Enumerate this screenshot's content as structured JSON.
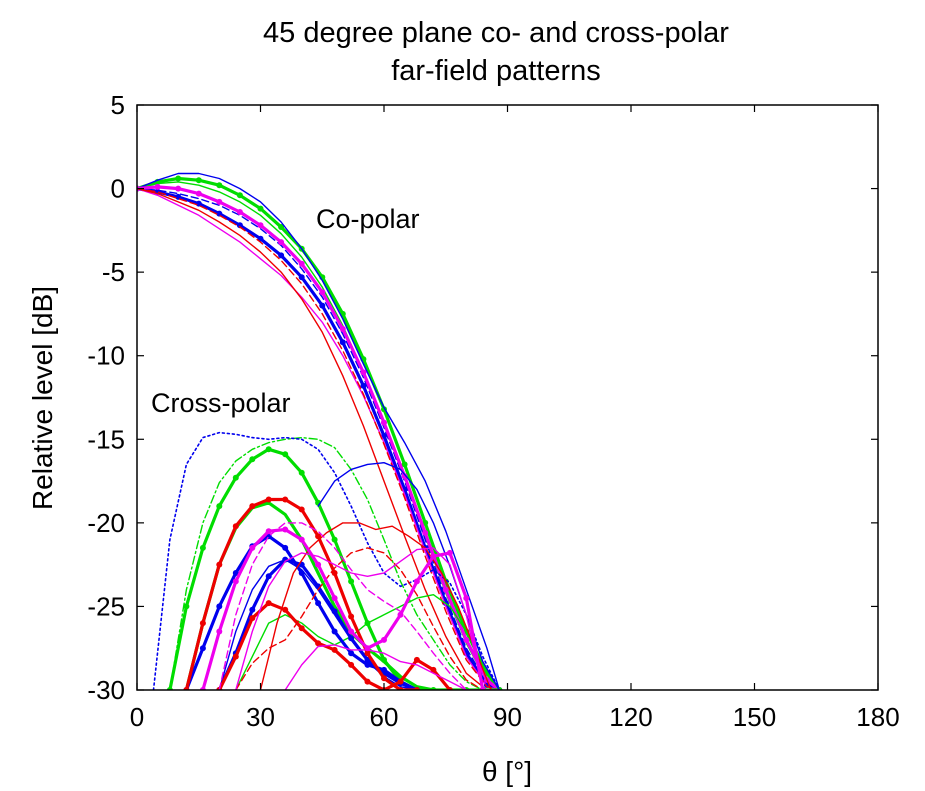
{
  "chart_data": {
    "type": "line",
    "title": [
      "45 degree plane co- and cross-polar",
      "far-field patterns"
    ],
    "xlabel": "θ [°]",
    "ylabel": "Relative level [dB]",
    "xlim": [
      0,
      180
    ],
    "ylim": [
      -30,
      5
    ],
    "xticks": [
      0,
      30,
      60,
      90,
      120,
      150,
      180
    ],
    "yticks": [
      5,
      0,
      -5,
      -10,
      -15,
      -20,
      -25,
      -30
    ],
    "grid": false,
    "annotations": [
      {
        "text": "Co-polar",
        "x": 64,
        "y": -2
      },
      {
        "text": "Cross-polar",
        "x": 5,
        "y": -13
      }
    ],
    "series": [
      {
        "group": "co-polar",
        "color": "#00dd00",
        "style": "dotted-bold",
        "x": [
          0,
          5,
          10,
          15,
          20,
          25,
          30,
          35,
          40,
          45,
          50,
          55,
          60,
          65,
          70,
          75,
          80,
          85,
          88
        ],
        "y": [
          0,
          0.4,
          0.6,
          0.5,
          0.2,
          -0.4,
          -1.2,
          -2.3,
          -3.6,
          -5.3,
          -7.5,
          -10.2,
          -13.2,
          -16.5,
          -20,
          -23.5,
          -26.5,
          -29,
          -30
        ]
      },
      {
        "group": "co-polar",
        "color": "#00dd00",
        "style": "solid",
        "x": [
          0,
          5,
          10,
          15,
          20,
          25,
          30,
          35,
          40,
          45,
          50,
          55,
          60,
          65,
          70,
          75,
          80,
          85,
          88
        ],
        "y": [
          0,
          0.3,
          0.4,
          0.2,
          -0.2,
          -0.8,
          -1.6,
          -2.7,
          -4.1,
          -5.9,
          -8.2,
          -11,
          -14,
          -17.3,
          -20.8,
          -24.2,
          -27.2,
          -29.5,
          -30
        ]
      },
      {
        "group": "co-polar",
        "color": "#0000ee",
        "style": "dotted-bold",
        "x": [
          0,
          5,
          10,
          15,
          20,
          25,
          30,
          35,
          40,
          45,
          50,
          55,
          60,
          65,
          70,
          75,
          80,
          85,
          88
        ],
        "y": [
          0,
          -0.2,
          -0.5,
          -0.9,
          -1.5,
          -2.2,
          -3,
          -4,
          -5.3,
          -7,
          -9.2,
          -11.8,
          -14.8,
          -18,
          -21.5,
          -24.8,
          -27.8,
          -29.7,
          -30
        ]
      },
      {
        "group": "co-polar",
        "color": "#0000ee",
        "style": "solid",
        "x": [
          0,
          5,
          10,
          15,
          20,
          25,
          30,
          35,
          40,
          45,
          50,
          55,
          60,
          65,
          70,
          75,
          80,
          85,
          88
        ],
        "y": [
          0,
          0.5,
          0.9,
          0.9,
          0.6,
          0,
          -0.8,
          -2,
          -3.6,
          -5.5,
          -7.8,
          -10.5,
          -13.1,
          -15.2,
          -17.5,
          -20.5,
          -24,
          -27.5,
          -30
        ]
      },
      {
        "group": "co-polar",
        "color": "#0000ee",
        "style": "dashed",
        "x": [
          0,
          5,
          10,
          15,
          20,
          25,
          30,
          35,
          40,
          45,
          50,
          55,
          60,
          65,
          70,
          75,
          80,
          85,
          88
        ],
        "y": [
          0,
          -0.1,
          -0.3,
          -0.6,
          -1,
          -1.6,
          -2.4,
          -3.4,
          -4.8,
          -6.5,
          -8.7,
          -11.3,
          -14.3,
          -17.5,
          -21,
          -24.5,
          -27.5,
          -29.6,
          -30
        ]
      },
      {
        "group": "co-polar",
        "color": "#ee00ee",
        "style": "dotted-bold",
        "x": [
          0,
          5,
          10,
          15,
          20,
          25,
          30,
          35,
          40,
          45,
          50,
          55,
          60,
          65,
          70,
          75,
          80,
          85,
          88
        ],
        "y": [
          0,
          0.1,
          0,
          -0.3,
          -0.8,
          -1.4,
          -2.2,
          -3.2,
          -4.5,
          -6.2,
          -8.4,
          -11,
          -14,
          -17.2,
          -20.6,
          -24,
          -27,
          -29.4,
          -30
        ]
      },
      {
        "group": "co-polar",
        "color": "#ee00ee",
        "style": "solid",
        "x": [
          0,
          5,
          10,
          15,
          20,
          25,
          30,
          35,
          40,
          45,
          50,
          55,
          60,
          65,
          70,
          75,
          80,
          85,
          88
        ],
        "y": [
          0,
          -0.4,
          -1,
          -1.6,
          -2.4,
          -3.2,
          -4.2,
          -5.2,
          -6.5,
          -8,
          -10,
          -12.4,
          -15.2,
          -18.3,
          -21.7,
          -25,
          -28,
          -29.8,
          -30
        ]
      },
      {
        "group": "co-polar",
        "color": "#ee0000",
        "style": "solid",
        "x": [
          0,
          5,
          10,
          15,
          20,
          25,
          30,
          35,
          40,
          45,
          50,
          55,
          60,
          65,
          70,
          75,
          80,
          85,
          88
        ],
        "y": [
          0,
          -0.3,
          -0.8,
          -1.3,
          -2,
          -2.8,
          -3.8,
          -5,
          -6.6,
          -8.6,
          -11.2,
          -14.2,
          -17.5,
          -20.8,
          -24,
          -26.8,
          -29,
          -30,
          -30
        ]
      },
      {
        "group": "co-polar",
        "color": "#ee0000",
        "style": "dashed",
        "x": [
          0,
          5,
          10,
          15,
          20,
          25,
          30,
          35,
          40,
          45,
          50,
          55,
          60,
          65,
          70,
          75,
          80,
          85,
          88
        ],
        "y": [
          0,
          -0.2,
          -0.6,
          -1,
          -1.6,
          -2.3,
          -3.2,
          -4.3,
          -5.7,
          -7.5,
          -9.7,
          -12.3,
          -15.3,
          -18.5,
          -22,
          -25.3,
          -28.2,
          -29.8,
          -30
        ]
      },
      {
        "group": "cross-polar",
        "color": "#00dd00",
        "style": "dotted-bold",
        "x": [
          8,
          12,
          16,
          20,
          24,
          28,
          32,
          36,
          40,
          44,
          48,
          52,
          56,
          60,
          64,
          68,
          72,
          76,
          80,
          84,
          88
        ],
        "y": [
          -30,
          -25,
          -21.5,
          -19,
          -17.3,
          -16.2,
          -15.6,
          -15.9,
          -17,
          -18.8,
          -21,
          -23.5,
          -26,
          -28.2,
          -29.5,
          -30,
          -30,
          -30,
          -30,
          -30,
          -30
        ]
      },
      {
        "group": "cross-polar",
        "color": "#00dd00",
        "style": "solid-bold",
        "x": [
          12,
          16,
          20,
          24,
          28,
          32,
          36,
          40,
          44,
          48,
          52,
          56,
          60,
          64,
          68,
          72
        ],
        "y": [
          -30,
          -26,
          -22.5,
          -20.3,
          -19.1,
          -18.8,
          -19.5,
          -21,
          -23,
          -25,
          -26.6,
          -27.5,
          -28.3,
          -29.2,
          -29.8,
          -30
        ]
      },
      {
        "group": "cross-polar",
        "color": "#00dd00",
        "style": "dash-dot",
        "x": [
          8,
          12,
          16,
          20,
          24,
          28,
          32,
          36,
          40,
          44,
          48,
          52,
          56,
          60,
          64,
          68,
          72,
          76,
          80,
          84,
          88
        ],
        "y": [
          -30,
          -24,
          -20,
          -17.6,
          -16.3,
          -15.6,
          -15.2,
          -15,
          -14.9,
          -15,
          -15.5,
          -16.8,
          -18.6,
          -21,
          -23.5,
          -25.5,
          -27,
          -28.5,
          -29.5,
          -30,
          -30
        ]
      },
      {
        "group": "cross-polar",
        "color": "#00dd00",
        "style": "solid",
        "x": [
          24,
          28,
          32,
          36,
          40,
          44,
          48,
          52,
          56,
          60,
          64,
          68,
          72,
          76,
          80,
          84,
          88
        ],
        "y": [
          -30,
          -28,
          -26,
          -25.5,
          -26,
          -26.8,
          -27.3,
          -26.8,
          -26,
          -25.5,
          -25,
          -24.5,
          -24.3,
          -25,
          -26.5,
          -28.5,
          -30
        ]
      },
      {
        "group": "cross-polar",
        "color": "#0000ee",
        "style": "dotted-bold",
        "x": [
          12,
          16,
          20,
          24,
          28,
          32,
          36,
          40,
          44,
          48,
          52,
          56,
          60,
          64,
          68
        ],
        "y": [
          -30,
          -27.5,
          -25,
          -23,
          -21.4,
          -20.8,
          -21.5,
          -23,
          -24.8,
          -26.5,
          -27.8,
          -28.5,
          -28.8,
          -29.5,
          -30
        ]
      },
      {
        "group": "cross-polar",
        "color": "#0000ee",
        "style": "dotted-bold",
        "x": [
          20,
          24,
          28,
          32,
          36,
          40,
          44,
          48,
          52,
          56,
          60,
          64,
          68
        ],
        "y": [
          -30,
          -27.8,
          -25.2,
          -23.2,
          -22.2,
          -22.5,
          -23.8,
          -25.3,
          -26.9,
          -28.2,
          -29,
          -29.6,
          -30
        ]
      },
      {
        "group": "cross-polar",
        "color": "#0000ee",
        "style": "dotted",
        "x": [
          4,
          8,
          12,
          16,
          20,
          24,
          28,
          32,
          36,
          40,
          44,
          48,
          52,
          56,
          60,
          64,
          68,
          72,
          76,
          80,
          84,
          88
        ],
        "y": [
          -30,
          -21,
          -16.5,
          -14.9,
          -14.6,
          -14.7,
          -14.9,
          -15,
          -14.9,
          -15,
          -15.6,
          -17,
          -19,
          -21.2,
          -23,
          -23.8,
          -23.4,
          -22.8,
          -23.6,
          -25.5,
          -28,
          -30
        ]
      },
      {
        "group": "cross-polar",
        "color": "#0000ee",
        "style": "solid",
        "x": [
          44,
          48,
          52,
          56,
          60,
          64,
          68,
          72,
          76,
          80,
          84,
          88
        ],
        "y": [
          -19,
          -17.5,
          -16.8,
          -16.5,
          -16.4,
          -16.8,
          -18,
          -20,
          -22.6,
          -25.5,
          -28.3,
          -30
        ]
      },
      {
        "group": "cross-polar",
        "color": "#0000ee",
        "style": "solid",
        "x": [
          20,
          24,
          28,
          32,
          36,
          40,
          44,
          48,
          52,
          56,
          60,
          64,
          68
        ],
        "y": [
          -30,
          -26.5,
          -24,
          -22.6,
          -22.2,
          -22.8,
          -24,
          -25.5,
          -27,
          -28.3,
          -29.2,
          -29.8,
          -30
        ]
      },
      {
        "group": "cross-polar",
        "color": "#ee0000",
        "style": "dotted-bold",
        "x": [
          12,
          16,
          20,
          24,
          28,
          32,
          36,
          40,
          44,
          48,
          52,
          56,
          60,
          64,
          68
        ],
        "y": [
          -30,
          -26,
          -22.5,
          -20.2,
          -19,
          -18.6,
          -18.6,
          -19.2,
          -20.8,
          -23,
          -25.6,
          -27.8,
          -29.3,
          -30,
          -30
        ]
      },
      {
        "group": "cross-polar",
        "color": "#ee0000",
        "style": "dotted-bold",
        "x": [
          20,
          24,
          28,
          32,
          36,
          40,
          44,
          48,
          52,
          56,
          60,
          64,
          68,
          72,
          76
        ],
        "y": [
          -30,
          -28,
          -25.7,
          -24.8,
          -25.2,
          -26.3,
          -27.2,
          -27.6,
          -28.5,
          -29.5,
          -30,
          -29.5,
          -28.2,
          -28.8,
          -30
        ]
      },
      {
        "group": "cross-polar",
        "color": "#ee0000",
        "style": "solid",
        "x": [
          30,
          34,
          38,
          42,
          46,
          50,
          54,
          58,
          62,
          66,
          70,
          74,
          78,
          82,
          86
        ],
        "y": [
          -30,
          -26,
          -23,
          -21.5,
          -20.6,
          -20,
          -20,
          -20.4,
          -20.2,
          -20.8,
          -21.5,
          -23,
          -25,
          -27.5,
          -30
        ]
      },
      {
        "group": "cross-polar",
        "color": "#ee0000",
        "style": "dashed",
        "x": [
          24,
          28,
          32,
          36,
          40,
          44,
          48,
          52,
          56,
          60,
          64,
          68,
          72,
          76,
          80,
          84
        ],
        "y": [
          -30,
          -28.4,
          -27.5,
          -27,
          -25.6,
          -24,
          -22.7,
          -21.8,
          -21.5,
          -21.8,
          -22.8,
          -24.3,
          -26.2,
          -28,
          -29.4,
          -30
        ]
      },
      {
        "group": "cross-polar",
        "color": "#ee00ee",
        "style": "dotted-bold",
        "x": [
          16,
          20,
          24,
          28,
          32,
          36,
          40,
          44,
          48,
          52,
          56,
          60,
          64,
          68,
          72,
          76,
          80,
          84
        ],
        "y": [
          -30,
          -26.5,
          -23.5,
          -21.5,
          -20.5,
          -20.4,
          -21,
          -22.5,
          -24.5,
          -26.5,
          -27.5,
          -27,
          -25.5,
          -23.5,
          -22,
          -21.8,
          -24.5,
          -30
        ]
      },
      {
        "group": "cross-polar",
        "color": "#ee00ee",
        "style": "solid",
        "x": [
          24,
          28,
          32,
          36,
          40,
          44,
          48,
          52,
          56,
          60,
          64,
          68,
          72,
          76,
          80,
          84
        ],
        "y": [
          -30,
          -26.5,
          -23.8,
          -22.3,
          -21.8,
          -22,
          -22.5,
          -23,
          -23.2,
          -23,
          -22.3,
          -21.6,
          -21.5,
          -22.5,
          -25.5,
          -30
        ]
      },
      {
        "group": "cross-polar",
        "color": "#ee00ee",
        "style": "dashed",
        "x": [
          20,
          24,
          28,
          32,
          36,
          40,
          44,
          48,
          52,
          56,
          60,
          64,
          68,
          72,
          76,
          80
        ],
        "y": [
          -30,
          -25.5,
          -22.5,
          -20.8,
          -20,
          -20,
          -20.5,
          -21.5,
          -22.8,
          -24,
          -24.7,
          -25.3,
          -26.5,
          -27.8,
          -29,
          -30
        ]
      },
      {
        "group": "cross-polar",
        "color": "#ee00ee",
        "style": "solid",
        "x": [
          36,
          40,
          44,
          48,
          52,
          56,
          60,
          64,
          68,
          72,
          76,
          80,
          84,
          88
        ],
        "y": [
          -30,
          -28.5,
          -27.4,
          -27.3,
          -27.6,
          -27.6,
          -27.8,
          -28.3,
          -28.5,
          -29,
          -29.5,
          -30,
          -30,
          -30
        ]
      }
    ]
  }
}
